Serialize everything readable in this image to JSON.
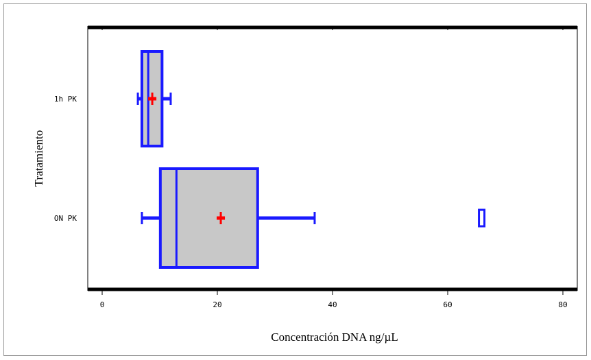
{
  "chart_data": {
    "type": "boxplot",
    "xlabel": "Concentración DNA ng/µL",
    "ylabel": "Tratamiento",
    "xlim": [
      -2.5,
      82.5
    ],
    "xticks": [
      0,
      20,
      40,
      60,
      80
    ],
    "grid": false,
    "legend": false,
    "categories": [
      "1h PK",
      "ON PK"
    ],
    "boxes": [
      {
        "category": "1h PK",
        "whisker_low": 6.2,
        "q1": 6.9,
        "median": 8.0,
        "q3": 10.4,
        "whisker_high": 11.9,
        "mean": 8.7,
        "outliers": []
      },
      {
        "category": "ON PK",
        "whisker_low": 6.9,
        "q1": 10.1,
        "median": 12.9,
        "q3": 27.0,
        "whisker_high": 36.9,
        "mean": 20.6,
        "outliers": [
          65.9
        ]
      }
    ],
    "colors": {
      "box_fill": "#c8c8c8",
      "box_line": "#1a1aff",
      "mean_marker": "#ff0000",
      "frame": "#000000"
    }
  }
}
